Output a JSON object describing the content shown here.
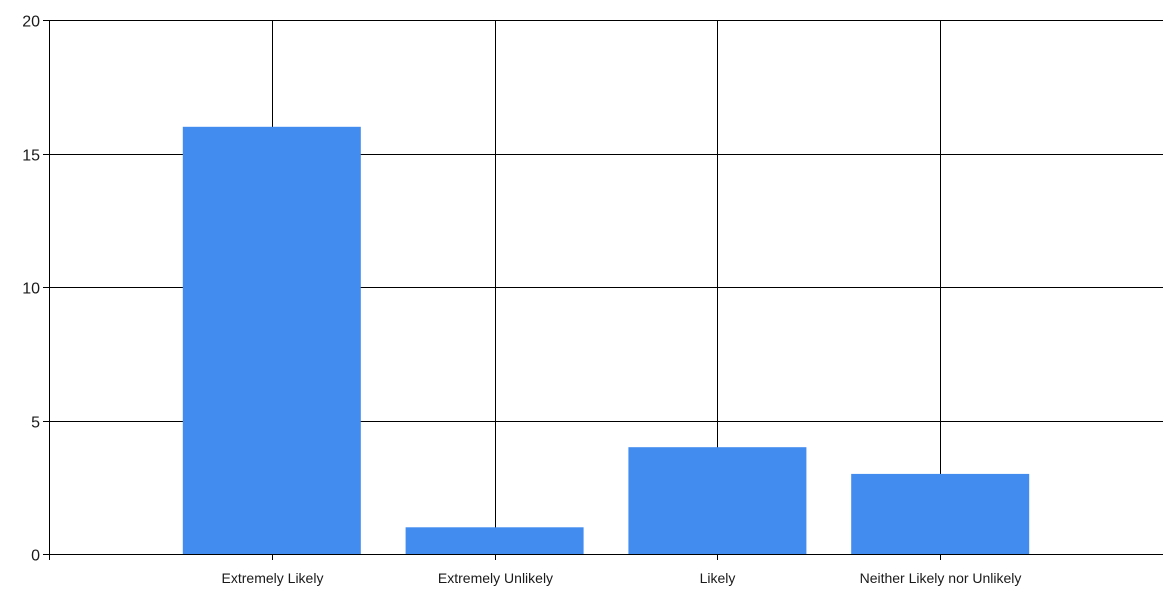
{
  "chart_data": {
    "type": "bar",
    "categories": [
      "Extremely Likely",
      "Extremely Unlikely",
      "Likely",
      "Neither Likely nor Unlikely"
    ],
    "values": [
      16,
      1,
      4,
      3
    ],
    "title": "",
    "xlabel": "",
    "ylabel": "",
    "ylim": [
      0,
      20
    ],
    "yticks": [
      0,
      5,
      10,
      15,
      20
    ],
    "grid": true,
    "legend": "none",
    "bar_color": "#428BEF",
    "grid_color": "#000000"
  }
}
